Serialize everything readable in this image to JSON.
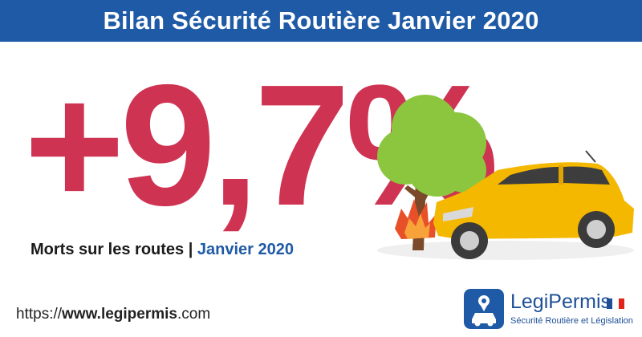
{
  "header": {
    "title": "Bilan Sécurité Routière Janvier 2020"
  },
  "headline": {
    "stat": "+9,7%",
    "subtitle_prefix": "Morts sur les routes | ",
    "subtitle_month": "Janvier 2020"
  },
  "footer": {
    "url_scheme": "https://",
    "url_host": "www.legipermis",
    "url_tld": ".com"
  },
  "logo": {
    "name": "LegiPermis",
    "tagline": "Sécurité Routière et Législation"
  },
  "colors": {
    "header_bg": "#1f5aa6",
    "stat": "#cf3352",
    "month": "#1f5aa6",
    "tree_foliage": "#8cc63f",
    "tree_trunk": "#7a4a2a",
    "car_body": "#f5b800",
    "fire": "#e8502a",
    "logo_bg": "#1f5aa6",
    "flag_blue": "#1e4f96",
    "flag_white": "#ffffff",
    "flag_red": "#e2231a"
  },
  "icons": {
    "illustration": "car-crash-tree-illustration",
    "logo_mark": "car-location-pin-icon",
    "flag": "french-flag-icon"
  }
}
